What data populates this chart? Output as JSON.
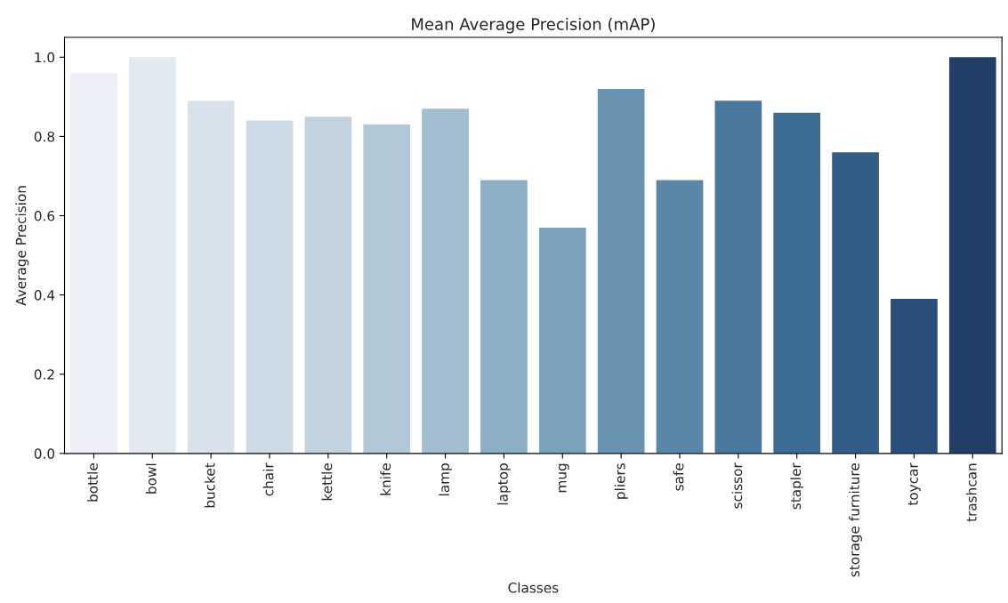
{
  "chart_data": {
    "type": "bar",
    "title": "Mean Average Precision (mAP)",
    "xlabel": "Classes",
    "ylabel": "Average Precision",
    "categories": [
      "bottle",
      "bowl",
      "bucket",
      "chair",
      "kettle",
      "knife",
      "lamp",
      "laptop",
      "mug",
      "pliers",
      "safe",
      "scissor",
      "stapler",
      "storage furniture",
      "toycar",
      "trashcan"
    ],
    "values": [
      0.96,
      1.0,
      0.89,
      0.84,
      0.85,
      0.83,
      0.87,
      0.69,
      0.57,
      0.92,
      0.69,
      0.89,
      0.86,
      0.76,
      0.39,
      1.0
    ],
    "colors": [
      "#eaf0f8",
      "#dfe9f3",
      "#d5e2ef",
      "#c9dbea",
      "#bdd3e4",
      "#adc9dc",
      "#9bbfd6",
      "#84b1cd",
      "#6fa4c6",
      "#5d95bc",
      "#4d88b5",
      "#3c79aa",
      "#2e6ca2",
      "#235d95",
      "#1c4d88",
      "#173f72"
    ],
    "ylim": [
      0,
      1.05
    ],
    "yticks": [
      {
        "value": 0,
        "label": "0.0"
      },
      {
        "value": 0.2,
        "label": "0.2"
      },
      {
        "value": 0.4,
        "label": "0.4"
      },
      {
        "value": 0.6,
        "label": "0.6"
      },
      {
        "value": 0.8,
        "label": "0.8"
      },
      {
        "value": 1.0,
        "label": "1.0"
      }
    ],
    "grid": false,
    "legend": false
  }
}
